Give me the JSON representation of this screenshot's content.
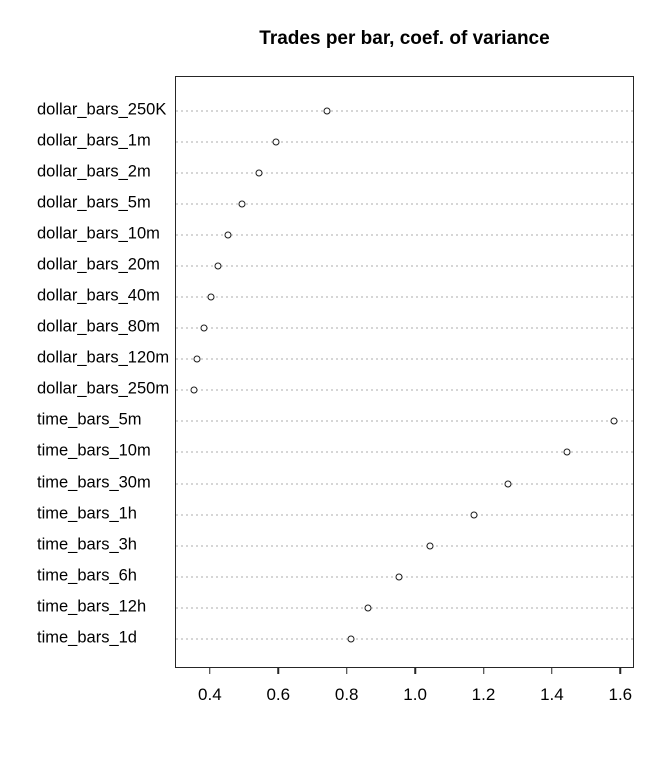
{
  "chart_data": {
    "type": "scatter",
    "variant": "horizontal-dot-chart",
    "title": "Trades per bar, coef. of variance",
    "categories": [
      "dollar_bars_250K",
      "dollar_bars_1m",
      "dollar_bars_2m",
      "dollar_bars_5m",
      "dollar_bars_10m",
      "dollar_bars_20m",
      "dollar_bars_40m",
      "dollar_bars_80m",
      "dollar_bars_120m",
      "dollar_bars_250m",
      "time_bars_5m",
      "time_bars_10m",
      "time_bars_30m",
      "time_bars_1h",
      "time_bars_3h",
      "time_bars_6h",
      "time_bars_12h",
      "time_bars_1d"
    ],
    "values": [
      0.74,
      0.59,
      0.54,
      0.49,
      0.45,
      0.42,
      0.4,
      0.38,
      0.36,
      0.35,
      1.58,
      1.44,
      1.27,
      1.17,
      1.04,
      0.95,
      0.86,
      0.81
    ],
    "xlabel": "",
    "ylabel": "",
    "x_tick_values": [
      0.4,
      0.6,
      0.8,
      1.0,
      1.2,
      1.4,
      1.6
    ],
    "x_tick_labels": [
      "0.4",
      "0.6",
      "0.8",
      "1.0",
      "1.2",
      "1.4",
      "1.6"
    ],
    "xlim": [
      0.298,
      1.64
    ],
    "grid": "dotted horizontal line per category",
    "legend": "none",
    "marker": "open-circle",
    "colors": {
      "marker_stroke": "#1c1c1c",
      "grid": "#d6d6d6",
      "axis": "#262626",
      "text": "#000000",
      "background": "#ffffff"
    }
  }
}
